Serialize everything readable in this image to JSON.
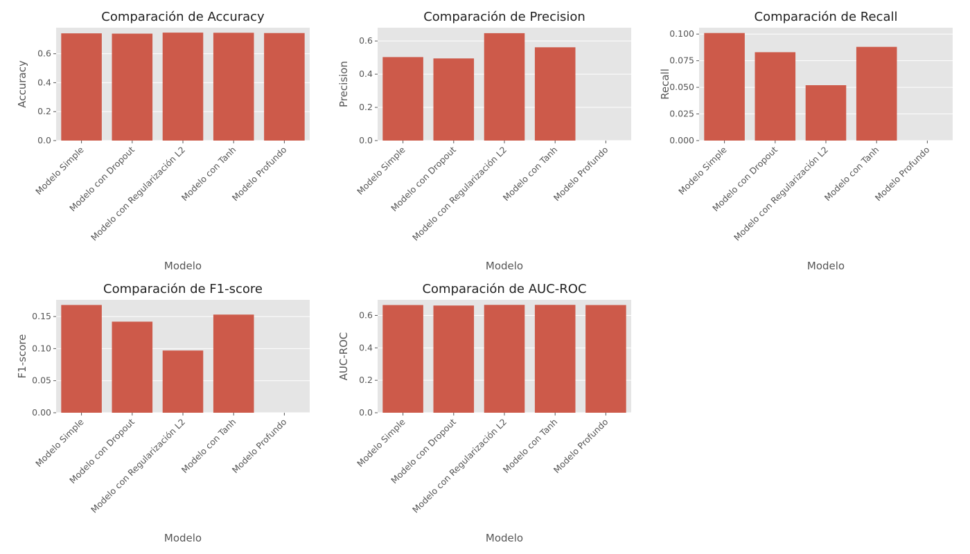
{
  "chart_data": [
    {
      "type": "bar",
      "title": "Comparación de Accuracy",
      "xlabel": "Modelo",
      "ylabel": "Accuracy",
      "categories": [
        "Modelo Simple",
        "Modelo con Dropout",
        "Modelo con Regularización L2",
        "Modelo con Tanh",
        "Modelo Profundo"
      ],
      "values": [
        0.741,
        0.739,
        0.746,
        0.745,
        0.743
      ],
      "ylim": [
        0,
        0.78
      ],
      "yticks": [
        "0.0",
        "0.2",
        "0.4",
        "0.6"
      ],
      "grid": true,
      "bar_color": "#cd5a4a"
    },
    {
      "type": "bar",
      "title": "Comparación de Precision",
      "xlabel": "Modelo",
      "ylabel": "Precision",
      "categories": [
        "Modelo Simple",
        "Modelo con Dropout",
        "Modelo con Regularización L2",
        "Modelo con Tanh",
        "Modelo Profundo"
      ],
      "values": [
        0.503,
        0.495,
        0.647,
        0.562,
        0.0
      ],
      "ylim": [
        0,
        0.68
      ],
      "yticks": [
        "0.0",
        "0.2",
        "0.4",
        "0.6"
      ],
      "grid": true,
      "bar_color": "#cd5a4a"
    },
    {
      "type": "bar",
      "title": "Comparación de Recall",
      "xlabel": "Modelo",
      "ylabel": "Recall",
      "categories": [
        "Modelo Simple",
        "Modelo con Dropout",
        "Modelo con Regularización L2",
        "Modelo con Tanh",
        "Modelo Profundo"
      ],
      "values": [
        0.101,
        0.083,
        0.052,
        0.088,
        0.0
      ],
      "ylim": [
        0,
        0.106
      ],
      "yticks": [
        "0.000",
        "0.025",
        "0.050",
        "0.075",
        "0.100"
      ],
      "grid": true,
      "bar_color": "#cd5a4a"
    },
    {
      "type": "bar",
      "title": "Comparación de F1-score",
      "xlabel": "Modelo",
      "ylabel": "F1-score",
      "categories": [
        "Modelo Simple",
        "Modelo con Dropout",
        "Modelo con Regularización L2",
        "Modelo con Tanh",
        "Modelo Profundo"
      ],
      "values": [
        0.168,
        0.142,
        0.097,
        0.153,
        0.0
      ],
      "ylim": [
        0,
        0.176
      ],
      "yticks": [
        "0.00",
        "0.05",
        "0.10",
        "0.15"
      ],
      "grid": true,
      "bar_color": "#cd5a4a"
    },
    {
      "type": "bar",
      "title": "Comparación de AUC-ROC",
      "xlabel": "Modelo",
      "ylabel": "AUC-ROC",
      "categories": [
        "Modelo Simple",
        "Modelo con Dropout",
        "Modelo con Regularización L2",
        "Modelo con Tanh",
        "Modelo Profundo"
      ],
      "values": [
        0.664,
        0.661,
        0.665,
        0.665,
        0.664
      ],
      "ylim": [
        0,
        0.696
      ],
      "yticks": [
        "0.0",
        "0.2",
        "0.4",
        "0.6"
      ],
      "grid": true,
      "bar_color": "#cd5a4a"
    }
  ]
}
